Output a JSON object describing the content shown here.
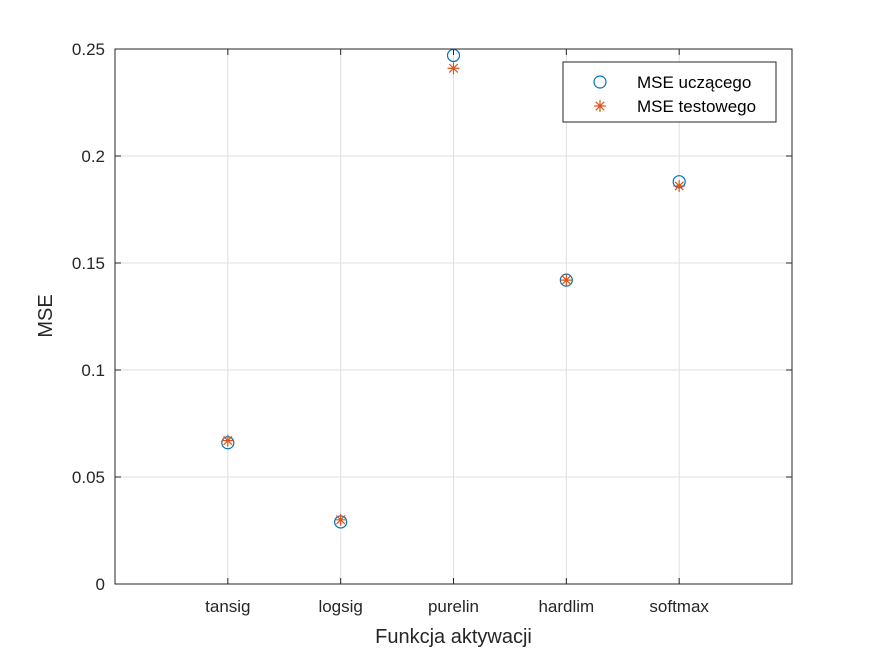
{
  "chart_data": {
    "type": "scatter",
    "categories": [
      "tansig",
      "logsig",
      "purelin",
      "hardlim",
      "softmax"
    ],
    "series": [
      {
        "name": "MSE uczącego",
        "marker": "circle",
        "color": "#0072BD",
        "values": [
          0.066,
          0.029,
          0.247,
          0.142,
          0.188
        ]
      },
      {
        "name": "MSE testowego",
        "marker": "asterisk",
        "color": "#D95319",
        "values": [
          0.067,
          0.03,
          0.241,
          0.142,
          0.186
        ]
      }
    ],
    "xlabel": "Funkcja aktywacji",
    "ylabel": "MSE",
    "ylim": [
      0,
      0.25
    ],
    "yticks": [
      0,
      0.05,
      0.1,
      0.15,
      0.2,
      0.25
    ],
    "ytick_labels": [
      "0",
      "0.05",
      "0.1",
      "0.15",
      "0.2",
      "0.25"
    ],
    "grid": true,
    "legend_position": "top-right"
  }
}
